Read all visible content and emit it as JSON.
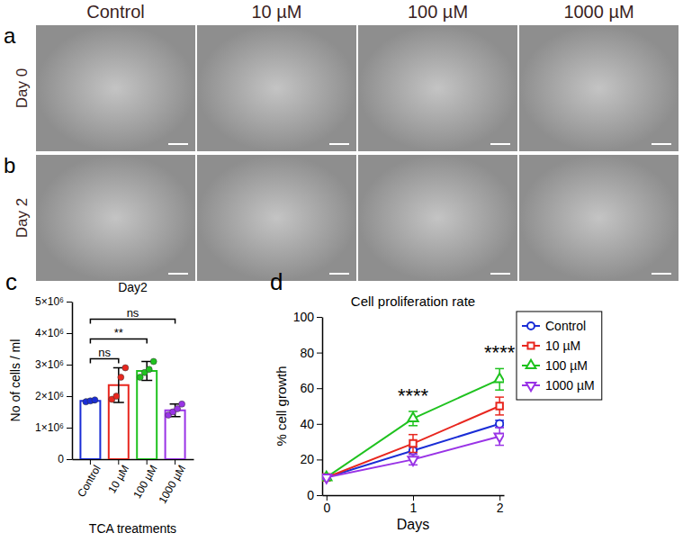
{
  "figure": {
    "columns": [
      "Control",
      "10 µM",
      "100 µM",
      "1000 µM"
    ],
    "rows": [
      {
        "panel_label": "a",
        "label": "Day 0"
      },
      {
        "panel_label": "b",
        "label": "Day 2"
      }
    ]
  },
  "chart_data": [
    {
      "type": "bar",
      "panel_label": "c",
      "title": "Day2",
      "x_label": "TCA treatments",
      "y_label": "No of cells / ml",
      "categories": [
        "Control",
        "10 µM",
        "100 µM",
        "1000 µM"
      ],
      "values": [
        1850000,
        2350000,
        2800000,
        1550000
      ],
      "errors": [
        50000,
        550000,
        300000,
        200000
      ],
      "points": [
        [
          1820000,
          1850000,
          1880000
        ],
        [
          1900000,
          2000000,
          2600000,
          2900000
        ],
        [
          2600000,
          2750000,
          2850000,
          3100000
        ],
        [
          1400000,
          1500000,
          1600000,
          1750000
        ]
      ],
      "colors": [
        "#1a2dd6",
        "#e8271f",
        "#1fc21f",
        "#9933e6"
      ],
      "ylim": [
        0,
        5000000
      ],
      "yticks": [
        0,
        {
          "value": 1000000,
          "label": "1×10⁶"
        },
        {
          "value": 2000000,
          "label": "2×10⁶"
        },
        {
          "value": 3000000,
          "label": "3×10⁶"
        },
        {
          "value": 4000000,
          "label": "4×10⁶"
        },
        {
          "value": 5000000,
          "label": "5×10⁶"
        }
      ],
      "annotations": [
        {
          "text": "ns",
          "between": [
            "Control",
            "10 µM"
          ]
        },
        {
          "text": "**",
          "between": [
            "Control",
            "100 µM"
          ]
        },
        {
          "text": "ns",
          "between": [
            "Control",
            "1000 µM"
          ]
        }
      ]
    },
    {
      "type": "line",
      "panel_label": "d",
      "title": "Cell proliferation rate",
      "x_label": "Days",
      "y_label": "% cell growth",
      "x": [
        0,
        1,
        2
      ],
      "series": [
        {
          "name": "Control",
          "color": "#1a2dd6",
          "marker": "circle",
          "values": [
            10,
            25,
            40
          ],
          "errors": [
            1,
            2,
            2
          ]
        },
        {
          "name": "10 µM",
          "color": "#e8271f",
          "marker": "square",
          "values": [
            10,
            29,
            50
          ],
          "errors": [
            1,
            5,
            5
          ]
        },
        {
          "name": "100 µM",
          "color": "#1fc21f",
          "marker": "triangle-up",
          "values": [
            10,
            43,
            65
          ],
          "errors": [
            1,
            4,
            6
          ]
        },
        {
          "name": "1000 µM",
          "color": "#9933e6",
          "marker": "triangle-down",
          "values": [
            10,
            20,
            33
          ],
          "errors": [
            1,
            3,
            5
          ]
        }
      ],
      "xlim": [
        -0.05,
        2.05
      ],
      "xticks": [
        0,
        1,
        2
      ],
      "ylim": [
        0,
        100
      ],
      "yticks": [
        0,
        20,
        40,
        60,
        80,
        100
      ],
      "legend": "right",
      "annotations": [
        {
          "text": "****",
          "x": 1
        },
        {
          "text": "****",
          "x": 2
        }
      ]
    }
  ]
}
